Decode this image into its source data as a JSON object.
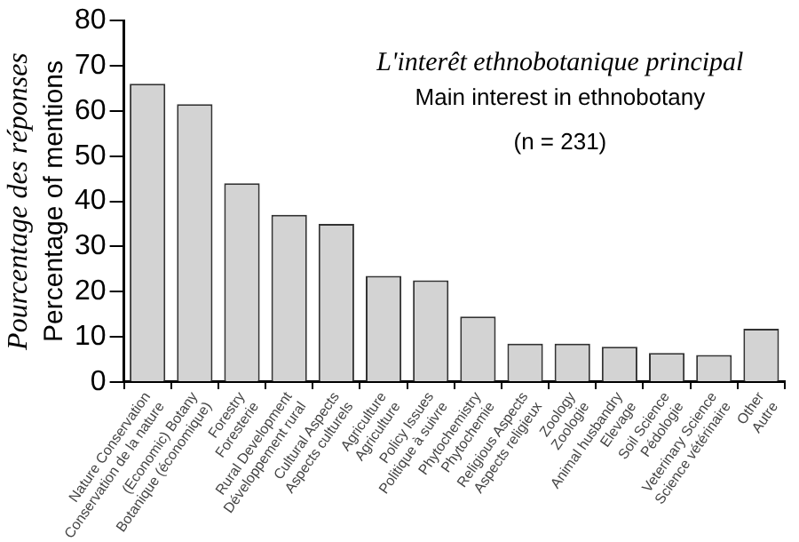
{
  "chart_data": {
    "type": "bar",
    "title": "L'interêt ethnobotanique principal",
    "subtitle": "Main interest in ethnobotany",
    "annotations": [
      "(n = 231)"
    ],
    "ylabel": "Pourcentage des réponses\nPercentage of mentions",
    "categories": [
      "Nature Conservation\nConservation de la nature",
      "(Economic) Botany\nBotanique (économique)",
      "Forestry\nForesterie",
      "Rural Development\nDéveloppement rural",
      "Cultural Aspects\nAspects culturels",
      "Agriculture\nAgriculture",
      "Policy Issues\nPolitique à suivre",
      "Phytochemistry\nPhytochemie",
      "Religious Aspects\nAspects religieux",
      "Zoology\nZoologie",
      "Animal husbandry\nElevage",
      "Soil Science\nPédologie",
      "Veterinary Science\nScience vétérinaire",
      "Other\nAutre"
    ],
    "values": [
      66,
      61.5,
      44,
      37,
      35,
      23.5,
      22.5,
      14.5,
      8.5,
      8.5,
      7.8,
      6.4,
      6,
      11.8
    ],
    "color": "#d3d3d3",
    "ylim": [
      0,
      80
    ],
    "yticks": [
      0,
      10,
      20,
      30,
      40,
      50,
      60,
      70,
      80
    ],
    "grid": false,
    "legend": false
  }
}
